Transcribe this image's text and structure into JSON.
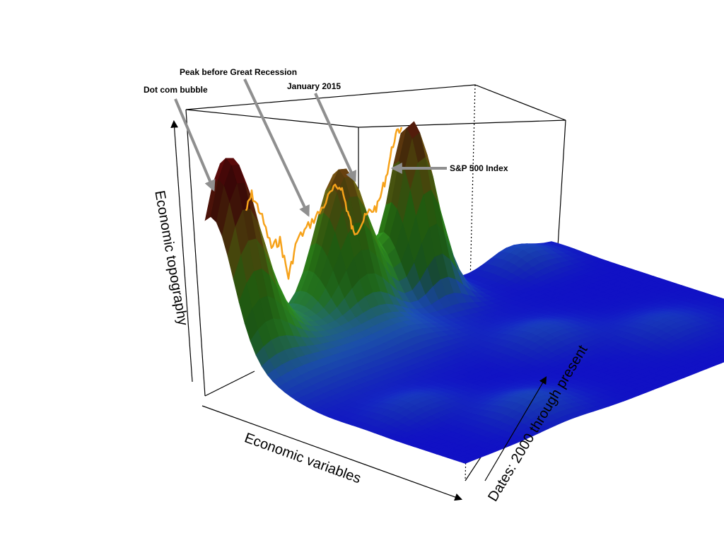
{
  "chart_data": {
    "type": "surface",
    "annotations": [
      {
        "id": "dotcom",
        "text": "Dot com bubble"
      },
      {
        "id": "peak",
        "text": "Peak before Great Recession"
      },
      {
        "id": "jan2015",
        "text": "January 2015"
      },
      {
        "id": "sp500",
        "text": "S&P 500 Index"
      }
    ],
    "axes": {
      "z": "Economic topography",
      "x": "Economic variables",
      "y": "Dates: 2000 through present"
    },
    "colormap": [
      "#1212d6",
      "#1f5ac4",
      "#2f9a2a",
      "#3ca51b",
      "#8a7a16",
      "#6a0c0c"
    ],
    "series_color": "#f6a21a",
    "annotation_arrow_color": "#8f8f8f"
  }
}
